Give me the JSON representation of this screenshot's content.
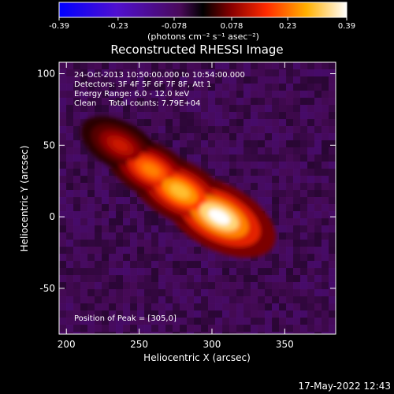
{
  "colorbar": {
    "tick_labels": [
      "-0.39",
      "-0.23",
      "-0.078",
      "0.078",
      "0.23",
      "0.39"
    ],
    "tick_values": [
      -0.39,
      -0.23,
      -0.078,
      0.078,
      0.23,
      0.39
    ],
    "range": [
      -0.39,
      0.39
    ],
    "units_label": "(photons cm⁻² s⁻¹ asec⁻²)"
  },
  "title": "Reconstructed RHESSI Image",
  "annotations": {
    "time_range": "24-Oct-2013 10:50:00.000 to 10:54:00.000",
    "detectors": "Detectors: 3F 4F 5F 6F 7F 8F, Att 1",
    "energy": "Energy Range: 6.0 - 12.0 keV",
    "clean": "Clean     Total counts: 7.79E+04",
    "peak": "Position of Peak = [305,0]"
  },
  "footer_timestamp": "17-May-2022 12:43",
  "chart_data": {
    "type": "heatmap",
    "title": "Reconstructed RHESSI Image",
    "xlabel": "Heliocentric X (arcsec)",
    "ylabel": "Heliocentric Y (arcsec)",
    "xlim": [
      195,
      385
    ],
    "ylim": [
      -82,
      108
    ],
    "x_ticks": [
      200,
      250,
      300,
      350
    ],
    "y_ticks": [
      -50,
      0,
      50,
      100
    ],
    "value_range": [
      -0.39,
      0.39
    ],
    "peak_position": [
      305,
      0
    ],
    "sources": [
      {
        "x": 305,
        "y": 0,
        "value": 0.39
      },
      {
        "x": 278,
        "y": 18,
        "value": 0.3
      },
      {
        "x": 258,
        "y": 33,
        "value": 0.24
      },
      {
        "x": 237,
        "y": 50,
        "value": 0.13
      }
    ]
  }
}
